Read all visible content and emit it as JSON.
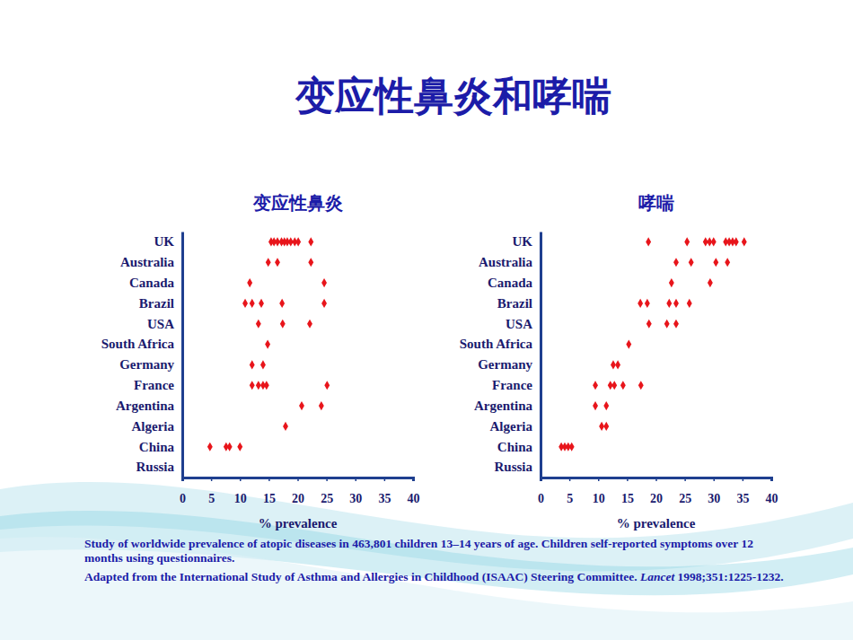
{
  "page": {
    "title": "变应性鼻炎和哮喘",
    "notes": [
      {
        "text": "Study of worldwide prevalence of atopic diseases in 463,801 children 13–14 years of age. Children self-reported symptoms over 12 months using questionnaires."
      },
      {
        "text": "Adapted from the International Study of Asthma and Allergies in Childhood (ISAAC) Steering Committee.",
        "journal": "Lancet",
        "citation": "1998;351:1225-1232."
      }
    ]
  },
  "chart_data": [
    {
      "type": "scatter",
      "title": "变应性鼻炎",
      "orientation": "horizontal",
      "x_label": "% prevalence",
      "marker": "diamond",
      "color": "#e8151b",
      "categories": [
        "UK",
        "Australia",
        "Canada",
        "Brazil",
        "USA",
        "South Africa",
        "Germany",
        "France",
        "Argentina",
        "Algeria",
        "China",
        "Russia"
      ],
      "values": [
        [
          15.4,
          15.9,
          16.5,
          17.2,
          17.7,
          18.2,
          18.8,
          19.5,
          20.1,
          22.3
        ],
        [
          14.9,
          16.5,
          22.3
        ],
        [
          11.7,
          24.6
        ],
        [
          10.9,
          12.1,
          13.7,
          17.3,
          24.6
        ],
        [
          13.2,
          17.4,
          22.1
        ],
        [
          14.8
        ],
        [
          12.1,
          14.0
        ],
        [
          12.1,
          13.2,
          14.0,
          14.6,
          25.1
        ],
        [
          20.7,
          24.1
        ],
        [
          17.9
        ],
        [
          4.8,
          7.6,
          8.2,
          10.0
        ],
        []
      ],
      "xlim": [
        0,
        40
      ],
      "xticks": [
        0,
        5,
        10,
        15,
        20,
        25,
        30,
        35,
        40
      ],
      "grid": false
    },
    {
      "type": "scatter",
      "title": "哮喘",
      "orientation": "horizontal",
      "x_label": "% prevalence",
      "marker": "diamond",
      "color": "#e8151b",
      "categories": [
        "UK",
        "Australia",
        "Canada",
        "Brazil",
        "USA",
        "South Africa",
        "Germany",
        "France",
        "Argentina",
        "Algeria",
        "China",
        "Russia"
      ],
      "values": [
        [
          18.7,
          25.4,
          28.6,
          29.3,
          30.0,
          32.1,
          32.7,
          33.3,
          33.9,
          35.3
        ],
        [
          23.5,
          26.1,
          30.4,
          32.4
        ],
        [
          22.7,
          29.4
        ],
        [
          17.3,
          18.5,
          22.3,
          23.5,
          25.8
        ],
        [
          18.8,
          21.9,
          23.5
        ],
        [
          15.3
        ],
        [
          12.6,
          13.4
        ],
        [
          9.5,
          12.1,
          12.8,
          14.3,
          17.4
        ],
        [
          9.5,
          11.4
        ],
        [
          10.6,
          11.4
        ],
        [
          3.6,
          4.2,
          4.8,
          5.4
        ],
        []
      ],
      "xlim": [
        0,
        40
      ],
      "xticks": [
        0,
        5,
        10,
        15,
        20,
        25,
        30,
        35,
        40
      ],
      "grid": false
    }
  ]
}
